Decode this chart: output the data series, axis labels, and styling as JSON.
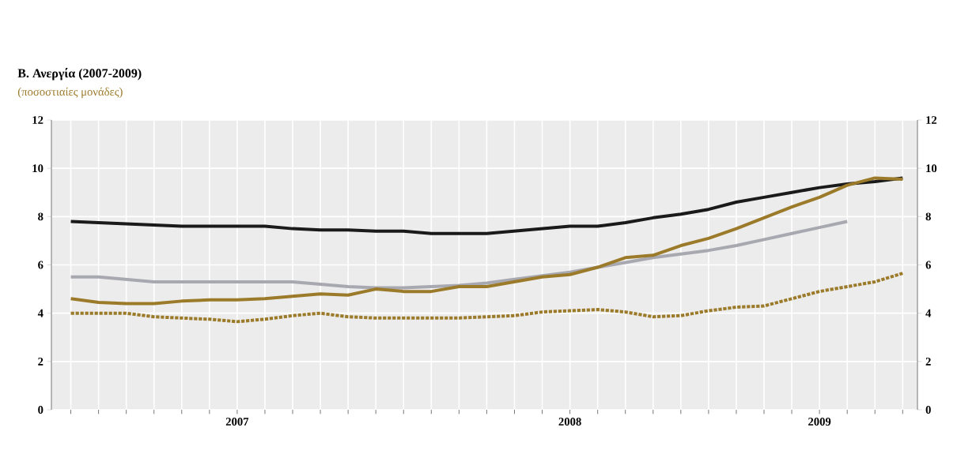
{
  "chart_data": {
    "type": "line",
    "title": "Β. Ανεργία (2007-2009)",
    "subtitle": "(ποσοστιαίες μονάδες)",
    "xlim": [
      "2006-12-10",
      "2009-07-17"
    ],
    "xticks": [
      {
        "value": "2007-01",
        "label": null
      },
      {
        "value": "2007-02",
        "label": null
      },
      {
        "value": "2007-03",
        "label": null
      },
      {
        "value": "2007-04",
        "label": null
      },
      {
        "value": "2007-05",
        "label": null
      },
      {
        "value": "2007-06",
        "label": null
      },
      {
        "value": "2007-07",
        "label": "2007"
      },
      {
        "value": "2007-08",
        "label": null
      },
      {
        "value": "2007-09",
        "label": null
      },
      {
        "value": "2007-10",
        "label": null
      },
      {
        "value": "2007-11",
        "label": null
      },
      {
        "value": "2007-12",
        "label": null
      },
      {
        "value": "2008-01",
        "label": null
      },
      {
        "value": "2008-02",
        "label": null
      },
      {
        "value": "2008-03",
        "label": null
      },
      {
        "value": "2008-04",
        "label": null
      },
      {
        "value": "2008-05",
        "label": null
      },
      {
        "value": "2008-06",
        "label": null
      },
      {
        "value": "2008-07",
        "label": "2008"
      },
      {
        "value": "2008-08",
        "label": null
      },
      {
        "value": "2008-09",
        "label": null
      },
      {
        "value": "2008-10",
        "label": null
      },
      {
        "value": "2008-11",
        "label": null
      },
      {
        "value": "2008-12",
        "label": null
      },
      {
        "value": "2009-01",
        "label": null
      },
      {
        "value": "2009-02",
        "label": null
      },
      {
        "value": "2009-03",
        "label": null
      },
      {
        "value": "2009-04",
        "label": "2009"
      },
      {
        "value": "2009-05",
        "label": null
      },
      {
        "value": "2009-06",
        "label": null
      },
      {
        "value": "2009-07",
        "label": null
      }
    ],
    "ylim": [
      0,
      12
    ],
    "yticks": [
      0,
      2,
      4,
      6,
      8,
      10,
      12
    ],
    "y2lim": [
      0,
      12
    ],
    "y2ticks": [
      0,
      2,
      4,
      6,
      8,
      10,
      12
    ],
    "grid": true,
    "line_style": "solid",
    "x": [
      "2007-01",
      "2007-02",
      "2007-03",
      "2007-04",
      "2007-05",
      "2007-06",
      "2007-07",
      "2007-08",
      "2007-09",
      "2007-10",
      "2007-11",
      "2007-12",
      "2008-01",
      "2008-02",
      "2008-03",
      "2008-04",
      "2008-05",
      "2008-06",
      "2008-07",
      "2008-08",
      "2008-09",
      "2008-10",
      "2008-11",
      "2008-12",
      "2009-01",
      "2009-02",
      "2009-03",
      "2009-04",
      "2009-05",
      "2009-06",
      "2009-07"
    ],
    "series": [
      {
        "color": "#1a1a1a",
        "values": [
          7.8,
          7.75,
          7.7,
          7.65,
          7.6,
          7.6,
          7.6,
          7.6,
          7.5,
          7.45,
          7.45,
          7.4,
          7.4,
          7.3,
          7.3,
          7.3,
          7.4,
          7.5,
          7.6,
          7.6,
          7.75,
          7.95,
          8.1,
          8.3,
          8.6,
          8.8,
          9.0,
          9.2,
          9.35,
          9.45,
          9.6
        ]
      },
      {
        "color": "#a8a8b0",
        "values": [
          5.5,
          5.5,
          5.4,
          5.3,
          5.3,
          5.3,
          5.3,
          5.3,
          5.3,
          5.2,
          5.1,
          5.05,
          5.05,
          5.1,
          5.15,
          5.25,
          5.4,
          5.55,
          5.7,
          5.9,
          6.1,
          6.3,
          6.45,
          6.6,
          6.8,
          7.05,
          7.3,
          7.55,
          7.8,
          null,
          null
        ]
      },
      {
        "color": "#9b7a2a",
        "values": [
          4.6,
          4.45,
          4.4,
          4.4,
          4.5,
          4.55,
          4.55,
          4.6,
          4.7,
          4.8,
          4.75,
          5.0,
          4.9,
          4.9,
          5.1,
          5.1,
          5.3,
          5.5,
          5.6,
          5.9,
          6.3,
          6.4,
          6.8,
          7.1,
          7.5,
          7.95,
          8.4,
          8.8,
          9.3,
          9.6,
          9.55
        ]
      },
      {
        "color": "#9b7a2a",
        "line_style": "dotted",
        "values": [
          4.0,
          4.0,
          4.0,
          3.85,
          3.8,
          3.75,
          3.65,
          3.75,
          3.9,
          4.0,
          3.85,
          3.8,
          3.8,
          3.8,
          3.8,
          3.85,
          3.9,
          4.05,
          4.1,
          4.15,
          4.05,
          3.85,
          3.9,
          4.1,
          4.25,
          4.3,
          4.6,
          4.9,
          5.1,
          5.3,
          5.65
        ]
      }
    ]
  }
}
